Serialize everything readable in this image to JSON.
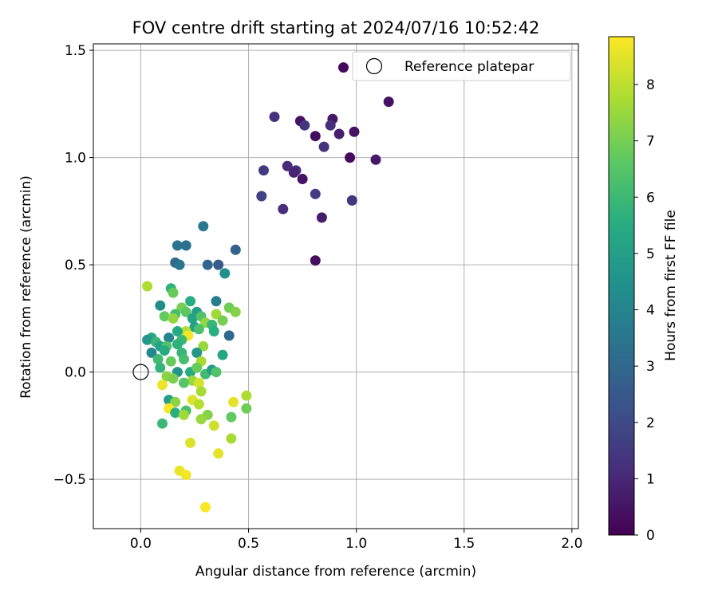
{
  "chart_data": {
    "type": "scatter",
    "title": "FOV centre drift starting at 2024/07/16 10:52:42",
    "xlabel": "Angular distance from reference (arcmin)",
    "ylabel": "Rotation from reference (arcmin)",
    "xlim": [
      -0.22,
      2.03
    ],
    "ylim": [
      -0.73,
      1.53
    ],
    "x_ticks": [
      0.0,
      0.5,
      1.0,
      1.5,
      2.0
    ],
    "x_tick_labels": [
      "0.0",
      "0.5",
      "1.0",
      "1.5",
      "2.0"
    ],
    "y_ticks": [
      -0.5,
      0.0,
      0.5,
      1.0,
      1.5
    ],
    "y_tick_labels": [
      "−0.5",
      "0.0",
      "0.5",
      "1.0",
      "1.5"
    ],
    "grid": true,
    "legend": {
      "placement": "top-right",
      "entries": [
        "Reference platepar"
      ]
    },
    "reference_point": {
      "label": "Reference platepar",
      "x": 0.0,
      "y": 0.0
    },
    "colorbar": {
      "label": "Hours from first FF file",
      "min": 0,
      "max": 8.85,
      "ticks": [
        0,
        1,
        2,
        3,
        4,
        5,
        6,
        7,
        8
      ],
      "tick_labels": [
        "0",
        "1",
        "2",
        "3",
        "4",
        "5",
        "6",
        "7",
        "8"
      ],
      "colormap": "viridis"
    },
    "points": [
      [
        0.94,
        1.42,
        0.2
      ],
      [
        1.15,
        1.26,
        0.4
      ],
      [
        0.62,
        1.19,
        1.3
      ],
      [
        0.74,
        1.17,
        0.4
      ],
      [
        0.89,
        1.18,
        0.6
      ],
      [
        0.76,
        1.15,
        1.4
      ],
      [
        0.88,
        1.15,
        1.2
      ],
      [
        0.99,
        1.12,
        0.5
      ],
      [
        0.81,
        1.1,
        0.3
      ],
      [
        0.92,
        1.11,
        0.8
      ],
      [
        0.85,
        1.05,
        1.3
      ],
      [
        0.97,
        1.0,
        0.2
      ],
      [
        1.09,
        0.99,
        0.6
      ],
      [
        0.68,
        0.96,
        1.1
      ],
      [
        0.72,
        0.94,
        1.3
      ],
      [
        0.57,
        0.94,
        1.5
      ],
      [
        0.71,
        0.93,
        0.9
      ],
      [
        0.75,
        0.9,
        0.5
      ],
      [
        0.81,
        0.83,
        1.6
      ],
      [
        0.56,
        0.82,
        1.7
      ],
      [
        0.98,
        0.8,
        1.4
      ],
      [
        0.66,
        0.76,
        1.2
      ],
      [
        0.84,
        0.72,
        0.7
      ],
      [
        0.81,
        0.52,
        0.3
      ],
      [
        0.29,
        0.68,
        3.6
      ],
      [
        0.17,
        0.59,
        3.4
      ],
      [
        0.21,
        0.59,
        3.3
      ],
      [
        0.44,
        0.57,
        2.8
      ],
      [
        0.16,
        0.51,
        3.1
      ],
      [
        0.18,
        0.5,
        3.5
      ],
      [
        0.31,
        0.5,
        2.9
      ],
      [
        0.36,
        0.5,
        2.6
      ],
      [
        0.39,
        0.46,
        4.4
      ],
      [
        0.03,
        0.4,
        7.8
      ],
      [
        0.14,
        0.39,
        5.7
      ],
      [
        0.15,
        0.37,
        6.8
      ],
      [
        0.35,
        0.33,
        3.7
      ],
      [
        0.09,
        0.31,
        4.3
      ],
      [
        0.23,
        0.33,
        5.5
      ],
      [
        0.19,
        0.3,
        7.0
      ],
      [
        0.41,
        0.3,
        6.9
      ],
      [
        0.44,
        0.28,
        7.2
      ],
      [
        0.26,
        0.28,
        4.9
      ],
      [
        0.16,
        0.27,
        6.2
      ],
      [
        0.21,
        0.28,
        6.6
      ],
      [
        0.35,
        0.27,
        7.6
      ],
      [
        0.11,
        0.26,
        6.7
      ],
      [
        0.15,
        0.25,
        7.4
      ],
      [
        0.24,
        0.25,
        5.2
      ],
      [
        0.28,
        0.26,
        6.4
      ],
      [
        0.38,
        0.24,
        7.0
      ],
      [
        0.3,
        0.23,
        7.4
      ],
      [
        0.25,
        0.21,
        5.0
      ],
      [
        0.33,
        0.22,
        5.9
      ],
      [
        0.27,
        0.2,
        6.3
      ],
      [
        0.21,
        0.19,
        7.9
      ],
      [
        0.17,
        0.19,
        5.4
      ],
      [
        0.34,
        0.19,
        5.6
      ],
      [
        0.41,
        0.17,
        3.0
      ],
      [
        0.22,
        0.17,
        8.7
      ],
      [
        0.13,
        0.16,
        4.0
      ],
      [
        0.05,
        0.16,
        5.3
      ],
      [
        0.19,
        0.15,
        6.0
      ],
      [
        0.03,
        0.15,
        4.8
      ],
      [
        0.07,
        0.14,
        5.9
      ],
      [
        0.09,
        0.12,
        5.1
      ],
      [
        0.12,
        0.12,
        6.4
      ],
      [
        0.29,
        0.12,
        7.5
      ],
      [
        0.17,
        0.13,
        5.7
      ],
      [
        0.05,
        0.09,
        4.1
      ],
      [
        0.11,
        0.1,
        5.5
      ],
      [
        0.19,
        0.09,
        5.9
      ],
      [
        0.26,
        0.09,
        4.7
      ],
      [
        0.38,
        0.08,
        5.3
      ],
      [
        0.08,
        0.06,
        6.1
      ],
      [
        0.14,
        0.05,
        6.8
      ],
      [
        0.2,
        0.06,
        6.2
      ],
      [
        0.28,
        0.05,
        7.7
      ],
      [
        0.09,
        0.02,
        5.8
      ],
      [
        0.17,
        0.0,
        4.6
      ],
      [
        0.23,
        0.0,
        5.5
      ],
      [
        0.26,
        0.02,
        6.8
      ],
      [
        0.3,
        -0.01,
        6.1
      ],
      [
        0.33,
        0.01,
        4.9
      ],
      [
        0.35,
        0.0,
        6.4
      ],
      [
        0.12,
        -0.02,
        7.3
      ],
      [
        0.15,
        -0.03,
        7.1
      ],
      [
        0.24,
        -0.04,
        7.5
      ],
      [
        0.27,
        -0.05,
        8.3
      ],
      [
        0.2,
        -0.05,
        6.5
      ],
      [
        0.1,
        -0.06,
        8.6
      ],
      [
        0.28,
        -0.09,
        7.7
      ],
      [
        0.13,
        -0.13,
        5.0
      ],
      [
        0.24,
        -0.13,
        8.4
      ],
      [
        0.16,
        -0.14,
        7.3
      ],
      [
        0.27,
        -0.15,
        7.9
      ],
      [
        0.43,
        -0.14,
        8.5
      ],
      [
        0.49,
        -0.11,
        7.8
      ],
      [
        0.49,
        -0.17,
        6.9
      ],
      [
        0.13,
        -0.17,
        8.8
      ],
      [
        0.16,
        -0.19,
        5.6
      ],
      [
        0.21,
        -0.18,
        6.3
      ],
      [
        0.2,
        -0.2,
        7.6
      ],
      [
        0.31,
        -0.2,
        7.2
      ],
      [
        0.42,
        -0.21,
        6.7
      ],
      [
        0.28,
        -0.22,
        7.5
      ],
      [
        0.1,
        -0.24,
        6.0
      ],
      [
        0.34,
        -0.25,
        8.2
      ],
      [
        0.42,
        -0.31,
        7.7
      ],
      [
        0.23,
        -0.33,
        8.4
      ],
      [
        0.36,
        -0.38,
        8.5
      ],
      [
        0.18,
        -0.46,
        8.6
      ],
      [
        0.21,
        -0.48,
        8.7
      ],
      [
        0.3,
        -0.63,
        8.8
      ]
    ]
  }
}
